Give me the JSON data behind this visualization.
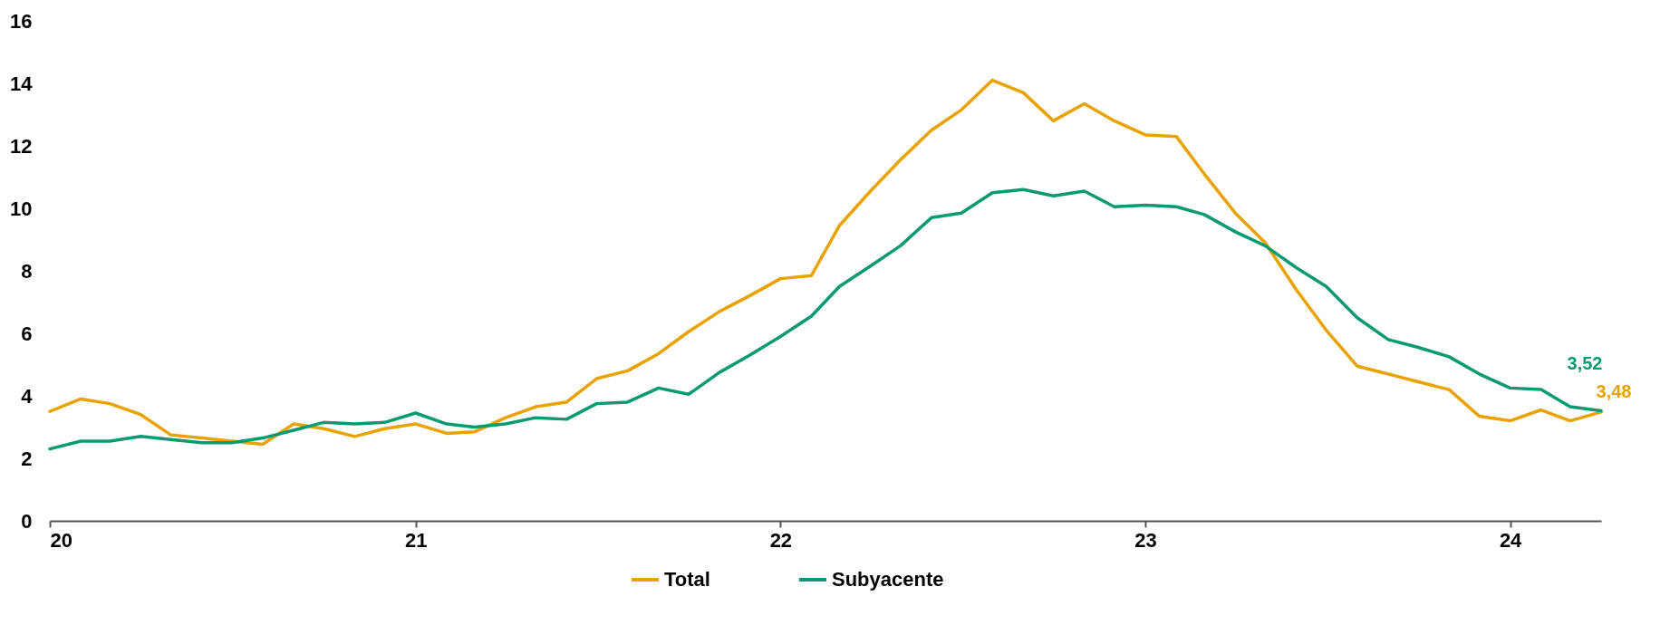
{
  "chart_data": {
    "type": "line",
    "x": [
      "2020-01",
      "2020-02",
      "2020-03",
      "2020-04",
      "2020-05",
      "2020-06",
      "2020-07",
      "2020-08",
      "2020-09",
      "2020-10",
      "2020-11",
      "2020-12",
      "2021-01",
      "2021-02",
      "2021-03",
      "2021-04",
      "2021-05",
      "2021-06",
      "2021-07",
      "2021-08",
      "2021-09",
      "2021-10",
      "2021-11",
      "2021-12",
      "2022-01",
      "2022-02",
      "2022-03",
      "2022-04",
      "2022-05",
      "2022-06",
      "2022-07",
      "2022-08",
      "2022-09",
      "2022-10",
      "2022-11",
      "2022-12",
      "2023-01",
      "2023-02",
      "2023-03",
      "2023-04",
      "2023-05",
      "2023-06",
      "2023-07",
      "2023-08",
      "2023-09",
      "2023-10",
      "2023-11",
      "2023-12",
      "2024-01",
      "2024-02",
      "2024-03",
      "2024-04"
    ],
    "series": [
      {
        "name": "Total",
        "color": "#e8a202",
        "values": [
          3.5,
          3.9,
          3.75,
          3.4,
          2.75,
          2.65,
          2.55,
          2.45,
          3.1,
          2.95,
          2.7,
          2.95,
          3.1,
          2.8,
          2.85,
          3.3,
          3.65,
          3.8,
          4.55,
          4.8,
          5.35,
          6.05,
          6.7,
          7.2,
          7.75,
          7.85,
          9.45,
          10.55,
          11.55,
          12.5,
          13.15,
          14.1,
          13.7,
          12.8,
          13.35,
          12.8,
          12.35,
          12.3,
          11.1,
          9.85,
          8.9,
          7.4,
          6.1,
          4.95,
          4.7,
          4.45,
          4.2,
          3.35,
          3.2,
          3.55,
          3.2,
          3.48
        ]
      },
      {
        "name": "Subyacente",
        "color": "#0a9a72",
        "values": [
          2.3,
          2.55,
          2.55,
          2.7,
          2.6,
          2.5,
          2.5,
          2.65,
          2.9,
          3.15,
          3.1,
          3.15,
          3.45,
          3.1,
          3.0,
          3.1,
          3.3,
          3.25,
          3.75,
          3.8,
          4.25,
          4.05,
          4.75,
          5.3,
          5.9,
          6.55,
          7.5,
          8.15,
          8.8,
          9.7,
          9.85,
          10.5,
          10.6,
          10.4,
          10.55,
          10.05,
          10.1,
          10.05,
          9.8,
          9.25,
          8.8,
          8.1,
          7.5,
          6.5,
          5.8,
          5.55,
          5.25,
          4.7,
          4.25,
          4.2,
          3.65,
          3.52
        ]
      }
    ],
    "xlim": [
      "2020-01",
      "2024-04"
    ],
    "xticks": [
      {
        "value": "2020-01",
        "label": "20"
      },
      {
        "value": "2021-01",
        "label": "21"
      },
      {
        "value": "2022-01",
        "label": "22"
      },
      {
        "value": "2023-01",
        "label": "23"
      },
      {
        "value": "2024-01",
        "label": "24"
      }
    ],
    "ylim": [
      0,
      16
    ],
    "yticks": [
      0,
      2,
      4,
      6,
      8,
      10,
      12,
      14,
      16
    ],
    "grid": false,
    "legend": "bottom",
    "marker": "none",
    "line_style": "solid",
    "annotations": [
      {
        "text": "3,48",
        "x": "2024-04",
        "y": 3.48
      },
      {
        "text": "3,52",
        "x": "2024-04",
        "y": 3.52
      }
    ]
  }
}
